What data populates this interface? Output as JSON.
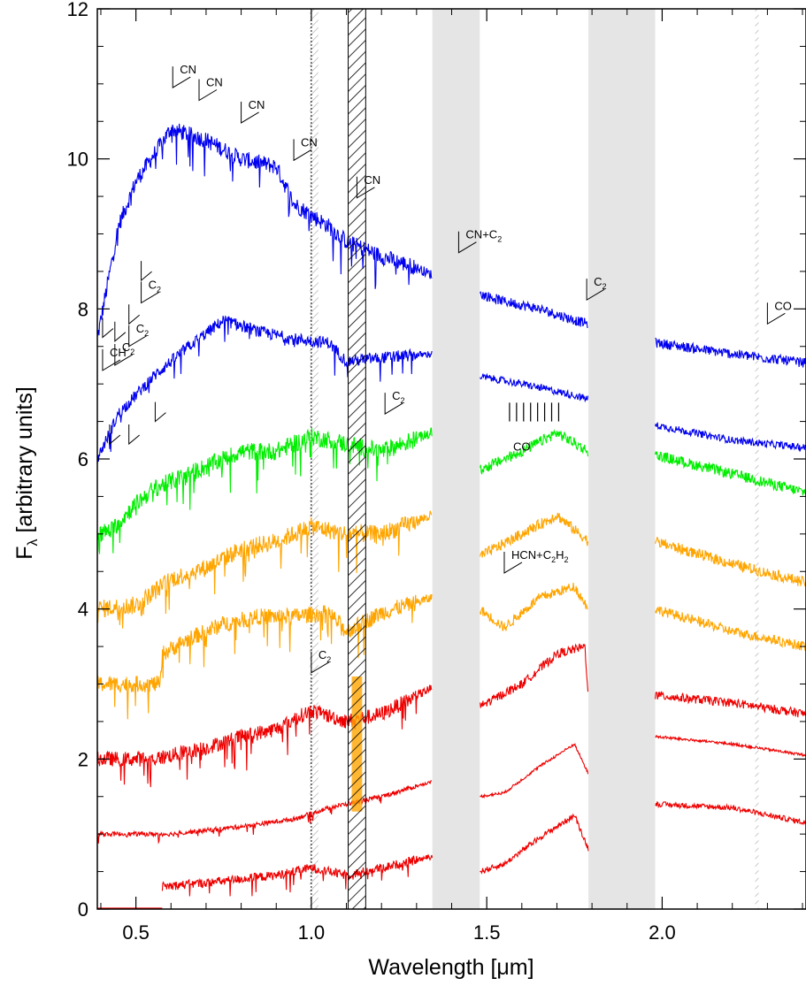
{
  "chart_data": {
    "type": "line",
    "title": "",
    "xlabel": "Wavelength [μm]",
    "ylabel_main": "F",
    "ylabel_sub": "λ",
    "ylabel_rest": " [arbitrary units]",
    "xlim": [
      0.39,
      2.41
    ],
    "ylim": [
      0,
      12
    ],
    "x_ticks": [
      0.5,
      1.0,
      1.5,
      2.0
    ],
    "x_tick_labels": [
      "0.5",
      "1.0",
      "1.5",
      "2.0"
    ],
    "y_ticks": [
      0,
      2,
      4,
      6,
      8,
      10,
      12
    ],
    "y_tick_labels": [
      "0",
      "2",
      "4",
      "6",
      "8",
      "10",
      "12"
    ],
    "grid": false,
    "gaps": [
      [
        1.345,
        1.48
      ],
      [
        1.79,
        1.98
      ]
    ],
    "grey_hatch_bands": [
      [
        0.995,
        1.02
      ],
      [
        2.265,
        2.275
      ]
    ],
    "black_hatch_band": [
      1.105,
      1.155
    ],
    "dotted_lines": [
      1.0
    ],
    "colors": {
      "blue": "#0000ee",
      "green": "#00ee00",
      "orange": "#ffa500",
      "red": "#ee0000",
      "gap": "#e5e5e5"
    },
    "series": [
      {
        "color": "blue",
        "start": 0.39,
        "base": 7.25,
        "env": [
          [
            0.39,
            7.6
          ],
          [
            0.45,
            9.1
          ],
          [
            0.5,
            9.7
          ],
          [
            0.6,
            10.4
          ],
          [
            0.7,
            10.25
          ],
          [
            0.8,
            10.0
          ],
          [
            0.9,
            9.9
          ],
          [
            0.95,
            9.4
          ],
          [
            1.05,
            9.1
          ],
          [
            1.1,
            8.9
          ],
          [
            1.2,
            8.7
          ],
          [
            1.3,
            8.55
          ],
          [
            1.345,
            8.45
          ],
          [
            1.48,
            8.2
          ],
          [
            1.55,
            8.1
          ],
          [
            1.65,
            8.0
          ],
          [
            1.75,
            7.85
          ],
          [
            1.79,
            7.8
          ],
          [
            1.98,
            7.55
          ],
          [
            2.2,
            7.4
          ],
          [
            2.41,
            7.28
          ]
        ],
        "noise": 0.11
      },
      {
        "color": "blue",
        "start": 0.39,
        "base": 6.0,
        "env": [
          [
            0.39,
            6.0
          ],
          [
            0.45,
            6.6
          ],
          [
            0.55,
            7.1
          ],
          [
            0.65,
            7.5
          ],
          [
            0.75,
            7.85
          ],
          [
            0.85,
            7.7
          ],
          [
            0.95,
            7.6
          ],
          [
            1.05,
            7.55
          ],
          [
            1.1,
            7.3
          ],
          [
            1.2,
            7.35
          ],
          [
            1.345,
            7.4
          ],
          [
            1.48,
            7.1
          ],
          [
            1.6,
            7.0
          ],
          [
            1.7,
            6.9
          ],
          [
            1.79,
            6.8
          ],
          [
            1.98,
            6.45
          ],
          [
            2.2,
            6.25
          ],
          [
            2.41,
            6.15
          ]
        ],
        "noise": 0.08
      },
      {
        "color": "green",
        "start": 0.39,
        "base": 5.0,
        "env": [
          [
            0.39,
            5.0
          ],
          [
            0.43,
            5.05
          ],
          [
            0.5,
            5.4
          ],
          [
            0.55,
            5.6
          ],
          [
            0.6,
            5.7
          ],
          [
            0.7,
            5.9
          ],
          [
            0.8,
            6.1
          ],
          [
            0.9,
            6.1
          ],
          [
            1.0,
            6.3
          ],
          [
            1.1,
            6.2
          ],
          [
            1.2,
            6.1
          ],
          [
            1.345,
            6.35
          ],
          [
            1.48,
            5.85
          ],
          [
            1.6,
            6.1
          ],
          [
            1.7,
            6.35
          ],
          [
            1.79,
            6.1
          ],
          [
            1.98,
            6.05
          ],
          [
            2.2,
            5.8
          ],
          [
            2.41,
            5.55
          ]
        ],
        "noise": 0.12
      },
      {
        "color": "orange",
        "start": 0.39,
        "base": 4.0,
        "env": [
          [
            0.39,
            4.0
          ],
          [
            0.5,
            4.05
          ],
          [
            0.6,
            4.4
          ],
          [
            0.7,
            4.55
          ],
          [
            0.8,
            4.8
          ],
          [
            0.9,
            4.9
          ],
          [
            1.0,
            5.1
          ],
          [
            1.1,
            5.0
          ],
          [
            1.2,
            5.0
          ],
          [
            1.345,
            5.25
          ],
          [
            1.48,
            4.7
          ],
          [
            1.6,
            5.0
          ],
          [
            1.7,
            5.25
          ],
          [
            1.79,
            4.9
          ],
          [
            1.98,
            4.9
          ],
          [
            2.2,
            4.6
          ],
          [
            2.41,
            4.35
          ]
        ],
        "noise": 0.12
      },
      {
        "color": "orange",
        "start": 0.39,
        "base": 3.0,
        "env": [
          [
            0.39,
            3.0
          ],
          [
            0.57,
            3.0
          ],
          [
            0.575,
            3.4
          ],
          [
            0.65,
            3.6
          ],
          [
            0.75,
            3.8
          ],
          [
            0.85,
            3.9
          ],
          [
            0.95,
            3.9
          ],
          [
            1.05,
            3.95
          ],
          [
            1.1,
            3.7
          ],
          [
            1.2,
            3.95
          ],
          [
            1.345,
            4.15
          ],
          [
            1.48,
            4.0
          ],
          [
            1.55,
            3.75
          ],
          [
            1.65,
            4.15
          ],
          [
            1.75,
            4.3
          ],
          [
            1.79,
            4.0
          ],
          [
            1.98,
            4.0
          ],
          [
            2.2,
            3.7
          ],
          [
            2.41,
            3.5
          ]
        ],
        "noise": 0.11
      },
      {
        "color": "red",
        "start": 0.39,
        "base": 2.0,
        "env": [
          [
            0.39,
            2.0
          ],
          [
            0.55,
            2.0
          ],
          [
            0.6,
            2.05
          ],
          [
            0.7,
            2.15
          ],
          [
            0.8,
            2.3
          ],
          [
            0.9,
            2.4
          ],
          [
            1.0,
            2.65
          ],
          [
            1.1,
            2.5
          ],
          [
            1.2,
            2.6
          ],
          [
            1.345,
            2.95
          ],
          [
            1.48,
            2.7
          ],
          [
            1.6,
            3.0
          ],
          [
            1.7,
            3.4
          ],
          [
            1.78,
            3.5
          ],
          [
            1.79,
            2.8
          ],
          [
            1.98,
            2.85
          ],
          [
            2.2,
            2.75
          ],
          [
            2.41,
            2.6
          ]
        ],
        "noise": 0.1
      },
      {
        "color": "red",
        "start": 0.39,
        "base": 1.0,
        "env": [
          [
            0.39,
            1.0
          ],
          [
            0.6,
            1.0
          ],
          [
            0.8,
            1.1
          ],
          [
            0.95,
            1.2
          ],
          [
            1.05,
            1.35
          ],
          [
            1.1,
            1.4
          ],
          [
            1.2,
            1.5
          ],
          [
            1.345,
            1.7
          ],
          [
            1.48,
            1.5
          ],
          [
            1.55,
            1.55
          ],
          [
            1.65,
            1.9
          ],
          [
            1.75,
            2.2
          ],
          [
            1.79,
            1.8
          ],
          [
            1.98,
            2.3
          ],
          [
            2.2,
            2.2
          ],
          [
            2.41,
            2.05
          ]
        ],
        "noise": 0.03
      },
      {
        "color": "red",
        "start": 0.575,
        "base": 0.0,
        "env": [
          [
            0.575,
            0.3
          ],
          [
            0.7,
            0.35
          ],
          [
            0.8,
            0.4
          ],
          [
            0.9,
            0.45
          ],
          [
            1.0,
            0.55
          ],
          [
            1.1,
            0.45
          ],
          [
            1.2,
            0.55
          ],
          [
            1.345,
            0.7
          ],
          [
            1.48,
            0.5
          ],
          [
            1.55,
            0.6
          ],
          [
            1.65,
            0.95
          ],
          [
            1.75,
            1.25
          ],
          [
            1.79,
            0.8
          ],
          [
            1.98,
            1.4
          ],
          [
            2.2,
            1.35
          ],
          [
            2.41,
            1.15
          ]
        ],
        "noise": 0.06
      }
    ],
    "annotations": [
      {
        "x": 0.405,
        "y": 7.18,
        "main": "CH",
        "sub": "",
        "rest": ""
      },
      {
        "x": 0.44,
        "y": 7.25,
        "main": "C",
        "sub": "2",
        "rest": ""
      },
      {
        "x": 0.48,
        "y": 7.5,
        "main": "C",
        "sub": "2",
        "rest": ""
      },
      {
        "x": 0.515,
        "y": 8.08,
        "main": "C",
        "sub": "2",
        "rest": ""
      },
      {
        "x": 0.605,
        "y": 10.95,
        "main": "CN",
        "sub": "",
        "rest": ""
      },
      {
        "x": 0.68,
        "y": 10.78,
        "main": "CN",
        "sub": "",
        "rest": ""
      },
      {
        "x": 0.8,
        "y": 10.48,
        "main": "CN",
        "sub": "",
        "rest": ""
      },
      {
        "x": 0.95,
        "y": 9.98,
        "main": "CN",
        "sub": "",
        "rest": ""
      },
      {
        "x": 1.13,
        "y": 9.48,
        "main": "CN",
        "sub": "",
        "rest": ""
      },
      {
        "x": 1.42,
        "y": 8.75,
        "main": "CN+C",
        "sub": "2",
        "rest": ""
      },
      {
        "x": 1.785,
        "y": 8.12,
        "main": "C",
        "sub": "2",
        "rest": ""
      },
      {
        "x": 2.3,
        "y": 7.8,
        "main": "CO",
        "sub": "",
        "rest": ""
      },
      {
        "x": 1.21,
        "y": 6.6,
        "main": "C",
        "sub": "2",
        "rest": ""
      },
      {
        "x": 1.55,
        "y": 4.48,
        "main": "HCN+C",
        "sub": "2",
        "rest": "H",
        "sub2": "2"
      },
      {
        "x": 1.0,
        "y": 3.15,
        "main": "C",
        "sub": "2",
        "rest": ""
      },
      {
        "x": 1.6,
        "y": 6.42,
        "main": "CO",
        "sub": "",
        "rest": ""
      }
    ],
    "marks": [
      {
        "x": 0.405,
        "y": 7.62
      },
      {
        "x": 0.44,
        "y": 7.57
      },
      {
        "x": 0.48,
        "y": 7.8
      },
      {
        "x": 0.515,
        "y": 8.38
      },
      {
        "x": 0.425,
        "y": 6.2
      },
      {
        "x": 0.48,
        "y": 6.2
      },
      {
        "x": 0.555,
        "y": 6.5
      }
    ],
    "co_bandheads": [
      1.565,
      1.585,
      1.605,
      1.625,
      1.645,
      1.665,
      1.685,
      1.705
    ]
  }
}
